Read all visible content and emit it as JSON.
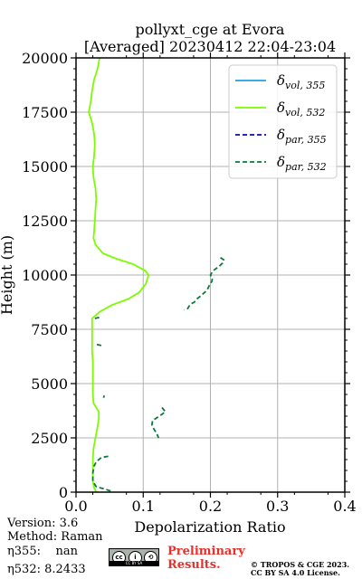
{
  "chart_data": {
    "type": "line",
    "title": "pollyxt_cge at Evora",
    "subtitle": "[Averaged] 20230412 22:04-23:04",
    "xlabel": "Depolarization Ratio",
    "ylabel": "Height (m)",
    "xlim": [
      0,
      0.4
    ],
    "ylim": [
      0,
      20000
    ],
    "xticks": [
      "0.0",
      "0.1",
      "0.2",
      "0.3",
      "0.4"
    ],
    "yticks": [
      "0",
      "2500",
      "5000",
      "7500",
      "10000",
      "12500",
      "15000",
      "17500",
      "20000"
    ],
    "grid": true,
    "legend_position": "top-right",
    "series": [
      {
        "key": "vol355",
        "legend_main": "δ",
        "legend_sub": "vol, 355",
        "color": "#1f9fe0",
        "style": "solid",
        "points": []
      },
      {
        "key": "vol532",
        "legend_main": "δ",
        "legend_sub": "vol, 532",
        "color": "#7cfc00",
        "style": "solid",
        "points": [
          [
            0.035,
            20000
          ],
          [
            0.032,
            19500
          ],
          [
            0.027,
            19000
          ],
          [
            0.024,
            18500
          ],
          [
            0.022,
            18000
          ],
          [
            0.019,
            17500
          ],
          [
            0.024,
            17000
          ],
          [
            0.027,
            16500
          ],
          [
            0.028,
            16000
          ],
          [
            0.027,
            15500
          ],
          [
            0.025,
            15000
          ],
          [
            0.026,
            14500
          ],
          [
            0.029,
            14000
          ],
          [
            0.03,
            13500
          ],
          [
            0.029,
            13000
          ],
          [
            0.028,
            12500
          ],
          [
            0.027,
            12000
          ],
          [
            0.026,
            11700
          ],
          [
            0.029,
            11400
          ],
          [
            0.04,
            11000
          ],
          [
            0.06,
            10750
          ],
          [
            0.085,
            10500
          ],
          [
            0.103,
            10200
          ],
          [
            0.108,
            10000
          ],
          [
            0.104,
            9600
          ],
          [
            0.094,
            9200
          ],
          [
            0.078,
            8900
          ],
          [
            0.052,
            8600
          ],
          [
            0.035,
            8300
          ],
          [
            0.024,
            8000
          ],
          [
            0.024,
            7500
          ],
          [
            0.024,
            7000
          ],
          [
            0.024,
            6500
          ],
          [
            0.025,
            6000
          ],
          [
            0.025,
            5500
          ],
          [
            0.025,
            5000
          ],
          [
            0.025,
            4500
          ],
          [
            0.026,
            4100
          ],
          [
            0.03,
            3900
          ],
          [
            0.034,
            3700
          ],
          [
            0.034,
            3400
          ],
          [
            0.032,
            3000
          ],
          [
            0.029,
            2500
          ],
          [
            0.026,
            2000
          ],
          [
            0.025,
            1500
          ],
          [
            0.025,
            1000
          ],
          [
            0.025,
            500
          ],
          [
            0.027,
            200
          ],
          [
            0.03,
            0
          ]
        ]
      },
      {
        "key": "par355",
        "legend_main": "δ",
        "legend_sub": "par, 355",
        "color": "#0a0aa8",
        "style": "dashed",
        "points": []
      },
      {
        "key": "par532",
        "legend_main": "δ",
        "legend_sub": "par, 532",
        "color": "#0a7a3a",
        "style": "dashed",
        "segments": [
          [
            [
              0.215,
              10800
            ],
            [
              0.22,
              10700
            ],
            [
              0.218,
              10550
            ],
            [
              0.213,
              10400
            ],
            [
              0.204,
              10200
            ],
            [
              0.2,
              10000
            ],
            [
              0.203,
              9850
            ],
            [
              0.202,
              9700
            ],
            [
              0.198,
              9500
            ],
            [
              0.195,
              9300
            ],
            [
              0.186,
              9050
            ],
            [
              0.18,
              8900
            ],
            [
              0.176,
              8750
            ],
            [
              0.17,
              8650
            ],
            [
              0.166,
              8450
            ],
            [
              0.161,
              8400
            ]
          ],
          [
            [
              0.028,
              8000
            ],
            [
              0.035,
              8050
            ]
          ],
          [
            [
              0.031,
              6800
            ],
            [
              0.038,
              6750
            ]
          ],
          [
            [
              0.042,
              4450
            ],
            [
              0.041,
              4350
            ]
          ],
          [
            [
              0.128,
              3900
            ],
            [
              0.133,
              3700
            ],
            [
              0.124,
              3500
            ],
            [
              0.114,
              3300
            ],
            [
              0.113,
              3100
            ],
            [
              0.116,
              2900
            ],
            [
              0.12,
              2700
            ],
            [
              0.123,
              2500
            ]
          ],
          [
            [
              0.048,
              1650
            ],
            [
              0.038,
              1600
            ],
            [
              0.03,
              1400
            ],
            [
              0.027,
              1200
            ],
            [
              0.025,
              900
            ],
            [
              0.025,
              500
            ],
            [
              0.03,
              250
            ],
            [
              0.042,
              150
            ],
            [
              0.052,
              50
            ]
          ]
        ]
      }
    ]
  },
  "footer": {
    "version": "Version: 3.6",
    "method": "Method: Raman",
    "eta355_label": "η355:",
    "eta355_value": "nan",
    "eta532_label": "η532:",
    "eta532_value": "8.2433",
    "license_badge": "CC BY SA",
    "preliminary_line1": "Preliminary",
    "preliminary_line2": "Results.",
    "credit_line1": "© TROPOS & CGE 2023.",
    "credit_line2": "CC BY SA 4.0 License."
  }
}
